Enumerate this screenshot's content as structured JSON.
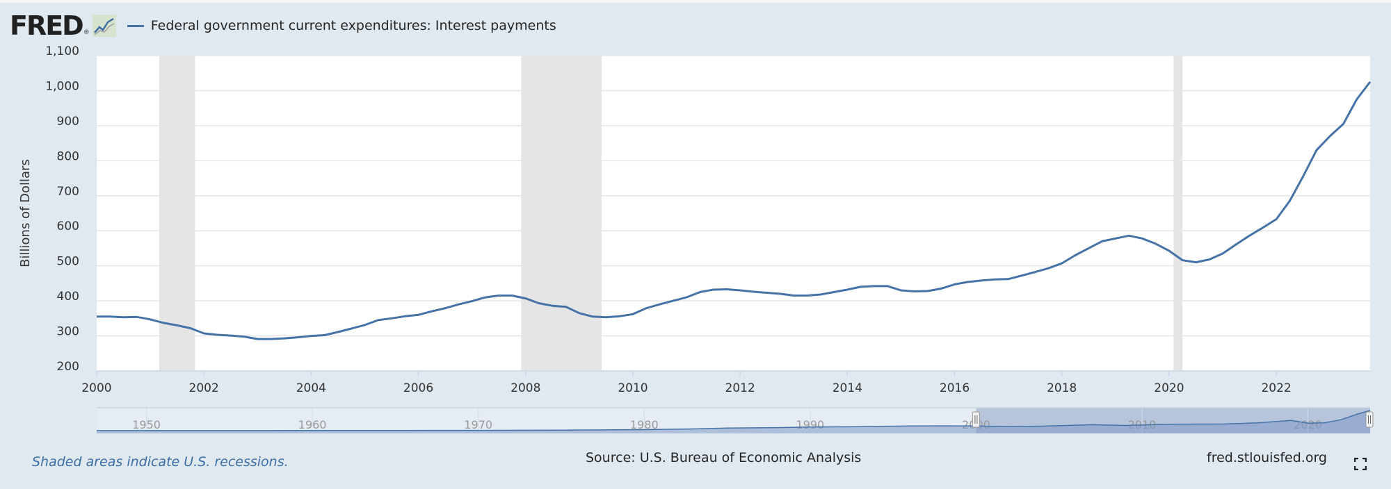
{
  "header": {
    "logo_text": "FRED",
    "logo_mark": "®",
    "logo_icon": "fred-graph-icon",
    "legend_label": "Federal government current expenditures: Interest payments"
  },
  "colors": {
    "background": "#e1e9f0",
    "plot_background": "#ffffff",
    "series": "#4572a7",
    "recession": "#e5e5e5",
    "navigator_selection": "#b6c4dc",
    "navigator_fill": "#7f9ac9"
  },
  "chart_data": {
    "type": "line",
    "title": "",
    "xlabel": "",
    "ylabel": "Billions of Dollars",
    "xlim": [
      "2000-01-01",
      "2023-10-01"
    ],
    "ylim": [
      200,
      1100
    ],
    "x_ticks": [
      "2000",
      "2002",
      "2004",
      "2006",
      "2008",
      "2010",
      "2012",
      "2014",
      "2016",
      "2018",
      "2020",
      "2022"
    ],
    "y_ticks": [
      "200",
      "300",
      "400",
      "500",
      "600",
      "700",
      "800",
      "900",
      "1,000",
      "1,100"
    ],
    "grid": true,
    "legend": "top-left",
    "recessions": [
      {
        "start": "2001-03-01",
        "end": "2001-11-01"
      },
      {
        "start": "2007-12-01",
        "end": "2009-06-01"
      },
      {
        "start": "2020-02-01",
        "end": "2020-04-01"
      }
    ],
    "series": [
      {
        "name": "Federal government current expenditures: Interest payments",
        "frequency": "quarterly",
        "start": "2000-01-01",
        "values": [
          355,
          355,
          353,
          354,
          347,
          337,
          330,
          322,
          307,
          303,
          301,
          298,
          291,
          291,
          293,
          296,
          300,
          302,
          311,
          321,
          331,
          345,
          350,
          356,
          360,
          370,
          379,
          390,
          399,
          410,
          415,
          415,
          407,
          393,
          386,
          383,
          365,
          355,
          353,
          356,
          362,
          379,
          390,
          400,
          410,
          425,
          432,
          433,
          430,
          426,
          423,
          420,
          415,
          415,
          418,
          425,
          432,
          440,
          442,
          442,
          430,
          427,
          428,
          435,
          447,
          454,
          458,
          461,
          462,
          472,
          482,
          493,
          507,
          530,
          550,
          570,
          578,
          586,
          578,
          563,
          543,
          516,
          510,
          518,
          535,
          561,
          586,
          609,
          633,
          685,
          755,
          830,
          870,
          905,
          975,
          1025
        ]
      }
    ],
    "navigator": {
      "x_ticks": [
        "1950",
        "1960",
        "1970",
        "1980",
        "1990",
        "2000",
        "2010",
        "2020"
      ],
      "range": [
        1947,
        2023.75
      ],
      "selection": [
        2000,
        2023.75
      ],
      "shape": [
        [
          1947,
          4
        ],
        [
          1955,
          5
        ],
        [
          1960,
          7
        ],
        [
          1965,
          9
        ],
        [
          1970,
          15
        ],
        [
          1975,
          25
        ],
        [
          1980,
          52
        ],
        [
          1983,
          90
        ],
        [
          1985,
          130
        ],
        [
          1988,
          155
        ],
        [
          1990,
          185
        ],
        [
          1993,
          200
        ],
        [
          1996,
          240
        ],
        [
          1998,
          245
        ],
        [
          2000,
          240
        ],
        [
          2002,
          205
        ],
        [
          2004,
          230
        ],
        [
          2007,
          300
        ],
        [
          2009,
          265
        ],
        [
          2012,
          330
        ],
        [
          2015,
          340
        ],
        [
          2017,
          395
        ],
        [
          2019,
          520
        ],
        [
          2020,
          380
        ],
        [
          2021,
          400
        ],
        [
          2022,
          560
        ],
        [
          2023,
          850
        ],
        [
          2023.75,
          1025
        ]
      ]
    }
  },
  "footer": {
    "note": "Shaded areas indicate U.S. recessions.",
    "source": "Source: U.S. Bureau of Economic Analysis",
    "site": "fred.stlouisfed.org",
    "fullscreen_icon": "fullscreen-icon"
  }
}
